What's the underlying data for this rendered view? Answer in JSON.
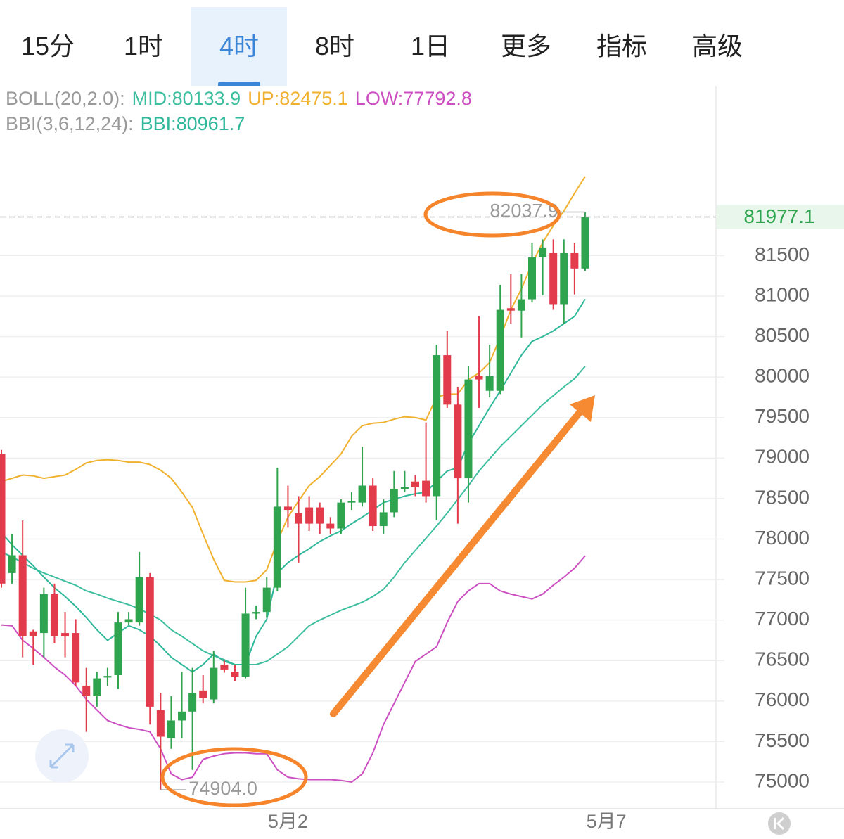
{
  "tabs": [
    "15分",
    "1时",
    "4时",
    "8时",
    "1日",
    "更多",
    "指标",
    "高级"
  ],
  "active_tab": 2,
  "chart_data": {
    "type": "candlestick",
    "indicator_legends": [
      {
        "title": "BOLL(20,2.0):",
        "items": [
          {
            "text": "MID:80133.9",
            "color": "#3dbf9f"
          },
          {
            "text": "UP:82475.1",
            "color": "#f0b12e"
          },
          {
            "text": "LOW:77792.8",
            "color": "#cc4fc2"
          }
        ]
      },
      {
        "title": "BBI(3,6,12,24):",
        "items": [
          {
            "text": "BBI:80961.7",
            "color": "#2fb89a"
          }
        ]
      }
    ],
    "categories": [
      null,
      null,
      null,
      null,
      null,
      null,
      null,
      null,
      null,
      null,
      null,
      null,
      null,
      null,
      null,
      null,
      null,
      null,
      null,
      null,
      null,
      null,
      null,
      null,
      null,
      null,
      null,
      "5月2",
      null,
      null,
      null,
      null,
      null,
      null,
      null,
      null,
      null,
      null,
      null,
      null,
      null,
      null,
      null,
      null,
      null,
      null,
      null,
      null,
      null,
      null,
      null,
      null,
      null,
      null,
      null,
      null,
      null,
      "5月7"
    ],
    "open": [
      79050,
      77580,
      77800,
      76860,
      76840,
      77320,
      76840,
      76840,
      76190,
      76060,
      76290,
      76320,
      76970,
      76970,
      77530,
      75890,
      75540,
      75760,
      75870,
      76130,
      76020,
      76450,
      76360,
      76300,
      77080,
      77100,
      77400,
      78400,
      78320,
      78390,
      78390,
      78190,
      78130,
      78450,
      78450,
      78660,
      78160,
      78330,
      78620,
      78710,
      78720,
      78530,
      80270,
      79660,
      78750,
      80010,
      79830,
      79830,
      80850,
      80820,
      80960,
      81480,
      81530,
      80900,
      81530,
      81340,
      null,
      null
    ],
    "high": [
      79100,
      78060,
      78230,
      76880,
      77400,
      77450,
      77100,
      77010,
      76410,
      76360,
      76410,
      77100,
      77100,
      77840,
      77580,
      76100,
      76060,
      76360,
      76410,
      76320,
      76620,
      76500,
      76450,
      77400,
      77180,
      77530,
      78880,
      78660,
      78530,
      78530,
      78450,
      78270,
      78490,
      78580,
      79140,
      78750,
      78490,
      78840,
      78840,
      78790,
      79440,
      80400,
      80570,
      79880,
      80140,
      80750,
      80400,
      81140,
      81270,
      81270,
      81660,
      81700,
      81700,
      81700,
      81660,
      82037.9,
      null,
      null
    ],
    "low": [
      77400,
      77450,
      76540,
      76450,
      76540,
      76710,
      76540,
      76190,
      75620,
      75930,
      76190,
      76150,
      76940,
      76930,
      75710,
      74904,
      75410,
      75540,
      75150,
      75970,
      75970,
      76350,
      76250,
      76280,
      77010,
      77030,
      77360,
      78140,
      77710,
      78100,
      78060,
      78060,
      78060,
      78360,
      78400,
      78100,
      78060,
      78270,
      78580,
      78530,
      78450,
      78230,
      79620,
      78190,
      78450,
      79620,
      79750,
      79790,
      80660,
      80490,
      80920,
      81010,
      80830,
      80660,
      81020,
      81310,
      null,
      null
    ],
    "close": [
      77450,
      77800,
      76800,
      76800,
      77320,
      76800,
      76800,
      76230,
      76060,
      76280,
      76310,
      76970,
      77010,
      77530,
      75930,
      75560,
      75760,
      75870,
      76100,
      76040,
      76410,
      76390,
      76300,
      77080,
      77100,
      77400,
      78400,
      78360,
      78190,
      78190,
      78190,
      78130,
      78450,
      78470,
      78660,
      78160,
      78330,
      78620,
      78640,
      78640,
      78530,
      80270,
      79660,
      78750,
      79970,
      79970,
      80010,
      80830,
      80820,
      80960,
      81480,
      81600,
      80900,
      81530,
      81340,
      81977.1,
      null,
      null
    ],
    "up_color": "#2fa44f",
    "down_color": "#e23b4c",
    "series": [
      {
        "color": "#f0b12e",
        "values": [
          78710,
          78750,
          78790,
          78780,
          78750,
          78770,
          78790,
          78860,
          78940,
          78970,
          78980,
          78970,
          78950,
          78950,
          78920,
          78850,
          78750,
          78580,
          78390,
          78060,
          77750,
          77490,
          77470,
          77470,
          77490,
          77620,
          77970,
          78270,
          78470,
          78660,
          78770,
          78910,
          79050,
          79270,
          79400,
          79430,
          79440,
          79480,
          79510,
          79500,
          79470,
          79750,
          79790,
          79790,
          79970,
          80050,
          80180,
          80490,
          80830,
          81090,
          81400,
          81660,
          81870,
          82050,
          82270,
          82475.1,
          null,
          null
        ]
      },
      {
        "color": "#3dbf9f",
        "values": [
          77840,
          77780,
          77710,
          77640,
          77580,
          77530,
          77480,
          77430,
          77360,
          77320,
          77270,
          77230,
          77190,
          77140,
          77070,
          77000,
          76880,
          76800,
          76710,
          76620,
          76560,
          76510,
          76450,
          76450,
          76450,
          76490,
          76580,
          76670,
          76800,
          76930,
          77000,
          77060,
          77120,
          77170,
          77220,
          77290,
          77380,
          77530,
          77710,
          77860,
          78010,
          78160,
          78320,
          78490,
          78660,
          78840,
          78990,
          79140,
          79270,
          79400,
          79530,
          79660,
          79770,
          79880,
          79980,
          80133.9,
          null,
          null
        ]
      },
      {
        "color": "#cc4fc2",
        "values": [
          76940,
          76930,
          76750,
          76650,
          76540,
          76420,
          76320,
          76190,
          76020,
          75890,
          75760,
          75710,
          75670,
          75650,
          75620,
          75410,
          75100,
          75030,
          75060,
          75280,
          75320,
          75350,
          75360,
          75360,
          75350,
          75350,
          75150,
          75060,
          75040,
          75030,
          75030,
          75030,
          75020,
          75000,
          75100,
          75360,
          75710,
          75970,
          76230,
          76490,
          76580,
          76670,
          76970,
          77230,
          77360,
          77450,
          77450,
          77360,
          77320,
          77290,
          77260,
          77320,
          77430,
          77530,
          77640,
          77792.8,
          null,
          null
        ]
      },
      {
        "color": "#2fb89a",
        "values": [
          78080,
          77930,
          77800,
          77670,
          77530,
          77400,
          77290,
          77170,
          77030,
          76880,
          76750,
          76840,
          76930,
          76880,
          76800,
          76680,
          76540,
          76450,
          76360,
          76450,
          76580,
          76490,
          76450,
          76450,
          76800,
          77010,
          77580,
          77710,
          77800,
          77880,
          77970,
          78040,
          78100,
          78190,
          78270,
          78360,
          78450,
          78490,
          78530,
          78560,
          78580,
          78710,
          78840,
          78880,
          79180,
          79400,
          79620,
          79830,
          80050,
          80270,
          80440,
          80500,
          80570,
          80660,
          80750,
          80961.7,
          null,
          null
        ]
      }
    ],
    "ylim": [
      74670,
      83570
    ],
    "yticks": [
      75000,
      75500,
      76000,
      76500,
      77000,
      77500,
      78000,
      78500,
      79000,
      79500,
      80000,
      80500,
      81000,
      81500
    ],
    "grid": true,
    "last_price": 81977.1,
    "last_price_color": "#2fa44f",
    "high_label": 82037.9,
    "low_label": {
      "value": 74904,
      "label": "74904.0"
    }
  }
}
